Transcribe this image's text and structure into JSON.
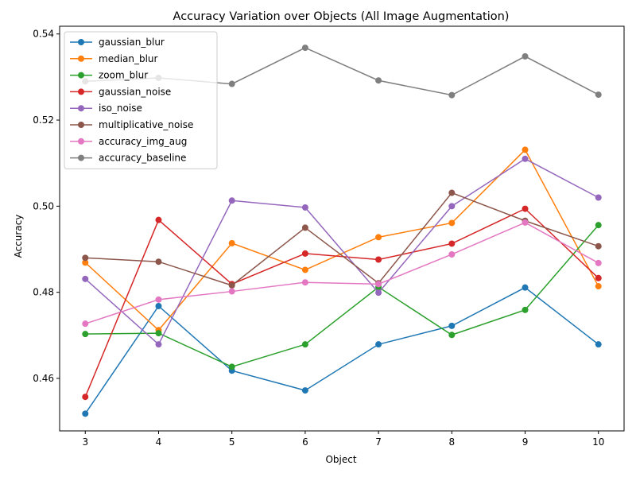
{
  "chart_data": {
    "type": "line",
    "title": "Accuracy Variation over Objects (All Image Augmentation)",
    "xlabel": "Object",
    "ylabel": "Accuracy",
    "x": [
      3,
      4,
      5,
      6,
      7,
      8,
      9,
      10
    ],
    "xlim": [
      2.65,
      10.35
    ],
    "ylim": [
      0.4478,
      0.5418
    ],
    "yticks": [
      "0.46",
      "0.48",
      "0.50",
      "0.52",
      "0.54"
    ],
    "xticks": [
      "3",
      "4",
      "5",
      "6",
      "7",
      "8",
      "9",
      "10"
    ],
    "legend_position": "top-left",
    "grid": false,
    "series": [
      {
        "name": "gaussian_blur",
        "color": "#1f77b4",
        "values": [
          0.4518,
          0.4768,
          0.4618,
          0.4572,
          0.4679,
          0.4722,
          0.4811,
          0.4679
        ]
      },
      {
        "name": "median_blur",
        "color": "#ff7f0e",
        "values": [
          0.4869,
          0.4712,
          0.4914,
          0.4852,
          0.4928,
          0.4961,
          0.5131,
          0.4814
        ]
      },
      {
        "name": "zoom_blur",
        "color": "#2ca02c",
        "values": [
          0.4703,
          0.4705,
          0.4627,
          0.4679,
          0.4812,
          0.4701,
          0.4759,
          0.4956
        ]
      },
      {
        "name": "gaussian_noise",
        "color": "#d62728",
        "values": [
          0.4557,
          0.4968,
          0.4819,
          0.489,
          0.4876,
          0.4913,
          0.4994,
          0.4833
        ]
      },
      {
        "name": "iso_noise",
        "color": "#9467bd",
        "values": [
          0.4831,
          0.4679,
          0.5013,
          0.4997,
          0.4799,
          0.5,
          0.511,
          0.502
        ]
      },
      {
        "name": "multiplicative_noise",
        "color": "#8c564b",
        "values": [
          0.488,
          0.4871,
          0.4816,
          0.495,
          0.4821,
          0.5031,
          0.4966,
          0.4907
        ]
      },
      {
        "name": "accuracy_img_aug",
        "color": "#e377c2",
        "values": [
          0.4727,
          0.4783,
          0.4802,
          0.4823,
          0.4819,
          0.4888,
          0.4962,
          0.4868
        ]
      },
      {
        "name": "accuracy_baseline",
        "color": "#7f7f7f",
        "values": [
          0.529,
          0.5298,
          0.5284,
          0.5368,
          0.5292,
          0.5258,
          0.5348,
          0.5259
        ]
      }
    ]
  }
}
